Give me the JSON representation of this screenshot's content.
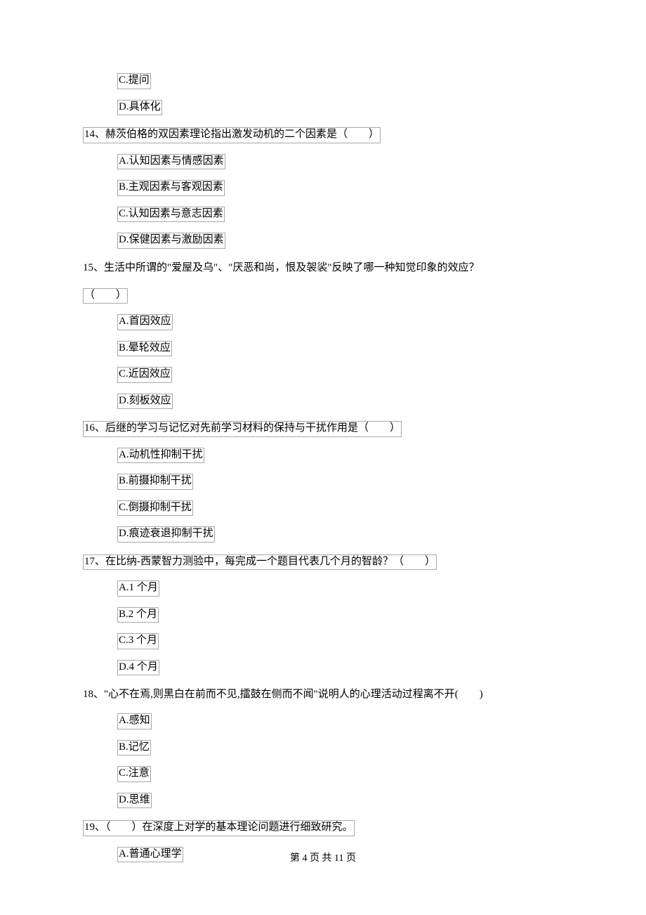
{
  "partial_q13": {
    "option_c": "C.提问",
    "option_d": "D.具体化"
  },
  "q14": {
    "text": "14、赫茨伯格的双因素理论指出激发动机的二个因素是（　　）",
    "option_a": "A.认知因素与情感因素",
    "option_b": "B.主观因素与客观因素",
    "option_c": "C.认知因素与意志因素",
    "option_d": "D.保健因素与激励因素"
  },
  "q15": {
    "text": "15、生活中所谓的\"爱屋及乌\"、\"厌恶和尚，恨及袈裟\"反映了哪一种知觉印象的效应？",
    "text_cont": "（　　）",
    "option_a": "A.首因效应",
    "option_b": "B.晕轮效应",
    "option_c": "C.近因效应",
    "option_d": "D.刻板效应"
  },
  "q16": {
    "text": "16、后继的学习与记忆对先前学习材料的保持与干扰作用是（　　）",
    "option_a": "A.动机性抑制干扰",
    "option_b": "B.前摄抑制干扰",
    "option_c": "C.倒摄抑制干扰",
    "option_d": "D.痕迹衰退抑制干扰"
  },
  "q17": {
    "text": "17、在比纳-西蒙智力测验中，每完成一个题目代表几个月的智龄？（　　）",
    "option_a": "A.1 个月",
    "option_b": "B.2 个月",
    "option_c": "C.3 个月",
    "option_d": "D.4 个月"
  },
  "q18": {
    "text": "18、\"心不在焉,则黑白在前而不见,擂鼓在侧而不闻\"说明人的心理活动过程离不开(　　)",
    "option_a": "A.感知",
    "option_b": "B.记忆",
    "option_c": "C.注意",
    "option_d": "D.思维"
  },
  "q19": {
    "text": "19、（　　）在深度上对学的基本理论问题进行细致研究。",
    "option_a": "A.普通心理学"
  },
  "footer": "第 4 页 共 11 页"
}
